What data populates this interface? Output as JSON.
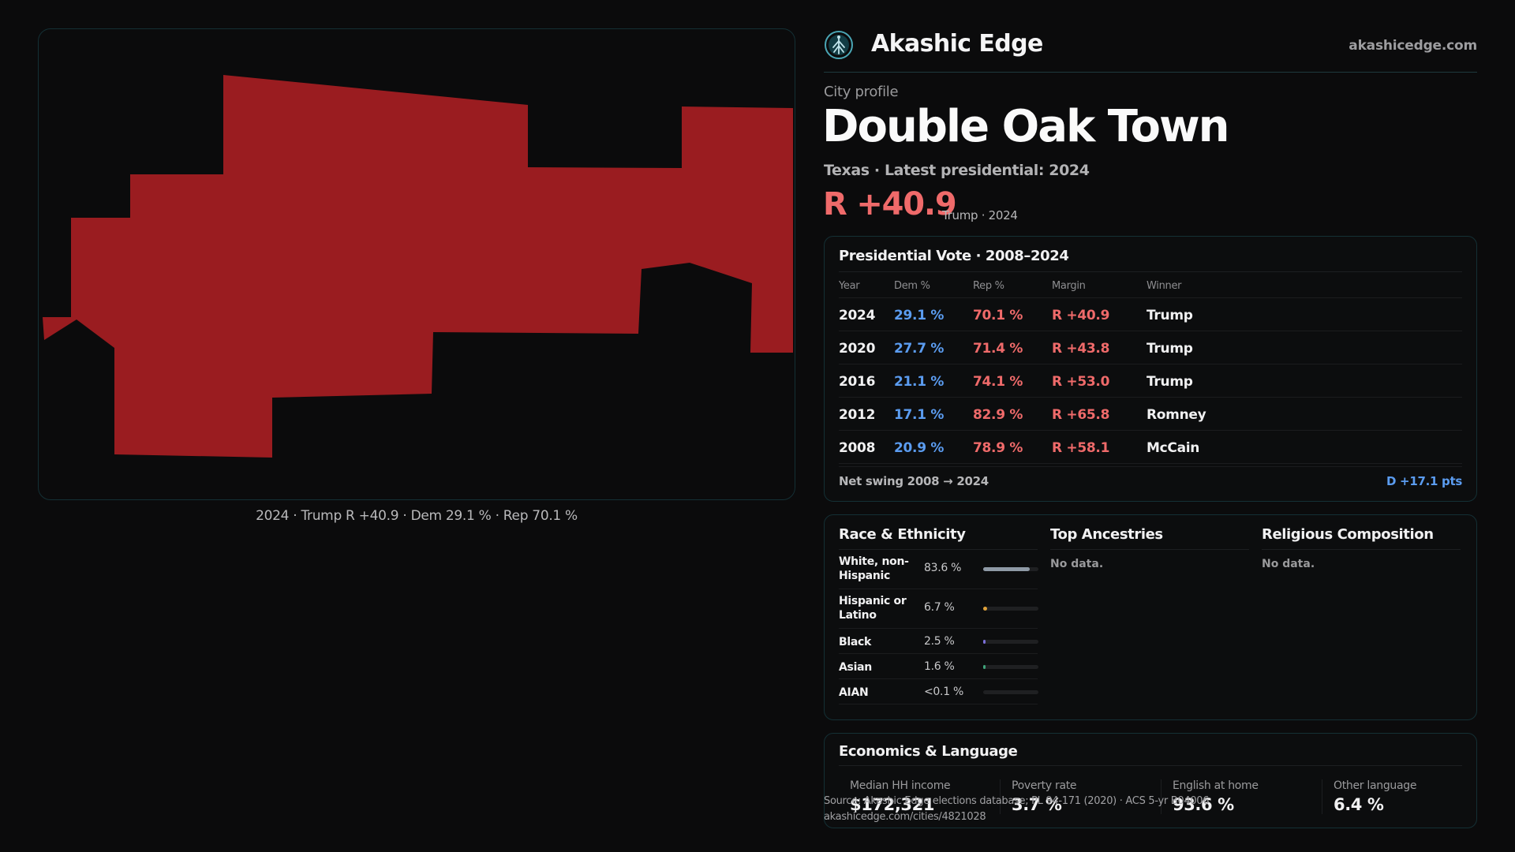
{
  "brand": {
    "name": "Akashic Edge",
    "site": "akashicedge.com",
    "logo_icon": "tree-of-life-icon"
  },
  "profile": {
    "eyebrow": "City profile",
    "city": "Double Oak Town",
    "subtitle": "Texas · Latest presidential: 2024",
    "margin": "R +40.9",
    "margin_note": "Trump · 2024"
  },
  "map": {
    "fill_color": "#9a1c20",
    "caption": "2024 · Trump R +40.9 · Dem 29.1 % · Rep 70.1 %"
  },
  "vote": {
    "title": "Presidential Vote · 2008–2024",
    "headers": {
      "year": "Year",
      "dem": "Dem %",
      "rep": "Rep %",
      "margin": "Margin",
      "winner": "Winner"
    },
    "rows": [
      {
        "year": "2024",
        "dem": "29.1 %",
        "rep": "70.1 %",
        "margin": "R +40.9",
        "winner": "Trump"
      },
      {
        "year": "2020",
        "dem": "27.7 %",
        "rep": "71.4 %",
        "margin": "R +43.8",
        "winner": "Trump"
      },
      {
        "year": "2016",
        "dem": "21.1 %",
        "rep": "74.1 %",
        "margin": "R +53.0",
        "winner": "Trump"
      },
      {
        "year": "2012",
        "dem": "17.1 %",
        "rep": "82.9 %",
        "margin": "R +65.8",
        "winner": "Romney"
      },
      {
        "year": "2008",
        "dem": "20.9 %",
        "rep": "78.9 %",
        "margin": "R +58.1",
        "winner": "McCain"
      }
    ],
    "swing_label": "Net swing 2008 → 2024",
    "swing_value": "D +17.1 pts"
  },
  "demographics": {
    "race": {
      "title": "Race & Ethnicity",
      "rows": [
        {
          "label": "White, non-Hispanic",
          "pct": "83.6 %",
          "share": 0.836,
          "color": "#8f9aa6"
        },
        {
          "label": "Hispanic or Latino",
          "pct": "6.7 %",
          "share": 0.067,
          "color": "#e0a23a"
        },
        {
          "label": "Black",
          "pct": "2.5 %",
          "share": 0.025,
          "color": "#7b6fd8"
        },
        {
          "label": "Asian",
          "pct": "1.6 %",
          "share": 0.016,
          "color": "#3fa37a"
        },
        {
          "label": "AIAN",
          "pct": "<0.1 %",
          "share": 0.0,
          "color": "#c0584f"
        }
      ]
    },
    "ancestries": {
      "title": "Top Ancestries",
      "empty": "No data."
    },
    "religion": {
      "title": "Religious Composition",
      "empty": "No data."
    }
  },
  "economics": {
    "title": "Economics & Language",
    "cells": [
      {
        "label": "Median HH income",
        "value": "$172,321"
      },
      {
        "label": "Poverty rate",
        "value": "3.7 %"
      },
      {
        "label": "English at home",
        "value": "93.6 %"
      },
      {
        "label": "Other language",
        "value": "6.4 %"
      }
    ]
  },
  "source": {
    "line1": "Source: Akashic Edge elections database; PL 94-171 (2020) · ACS 5-yr B04006",
    "line2": "akashicedge.com/cities/4821028"
  }
}
